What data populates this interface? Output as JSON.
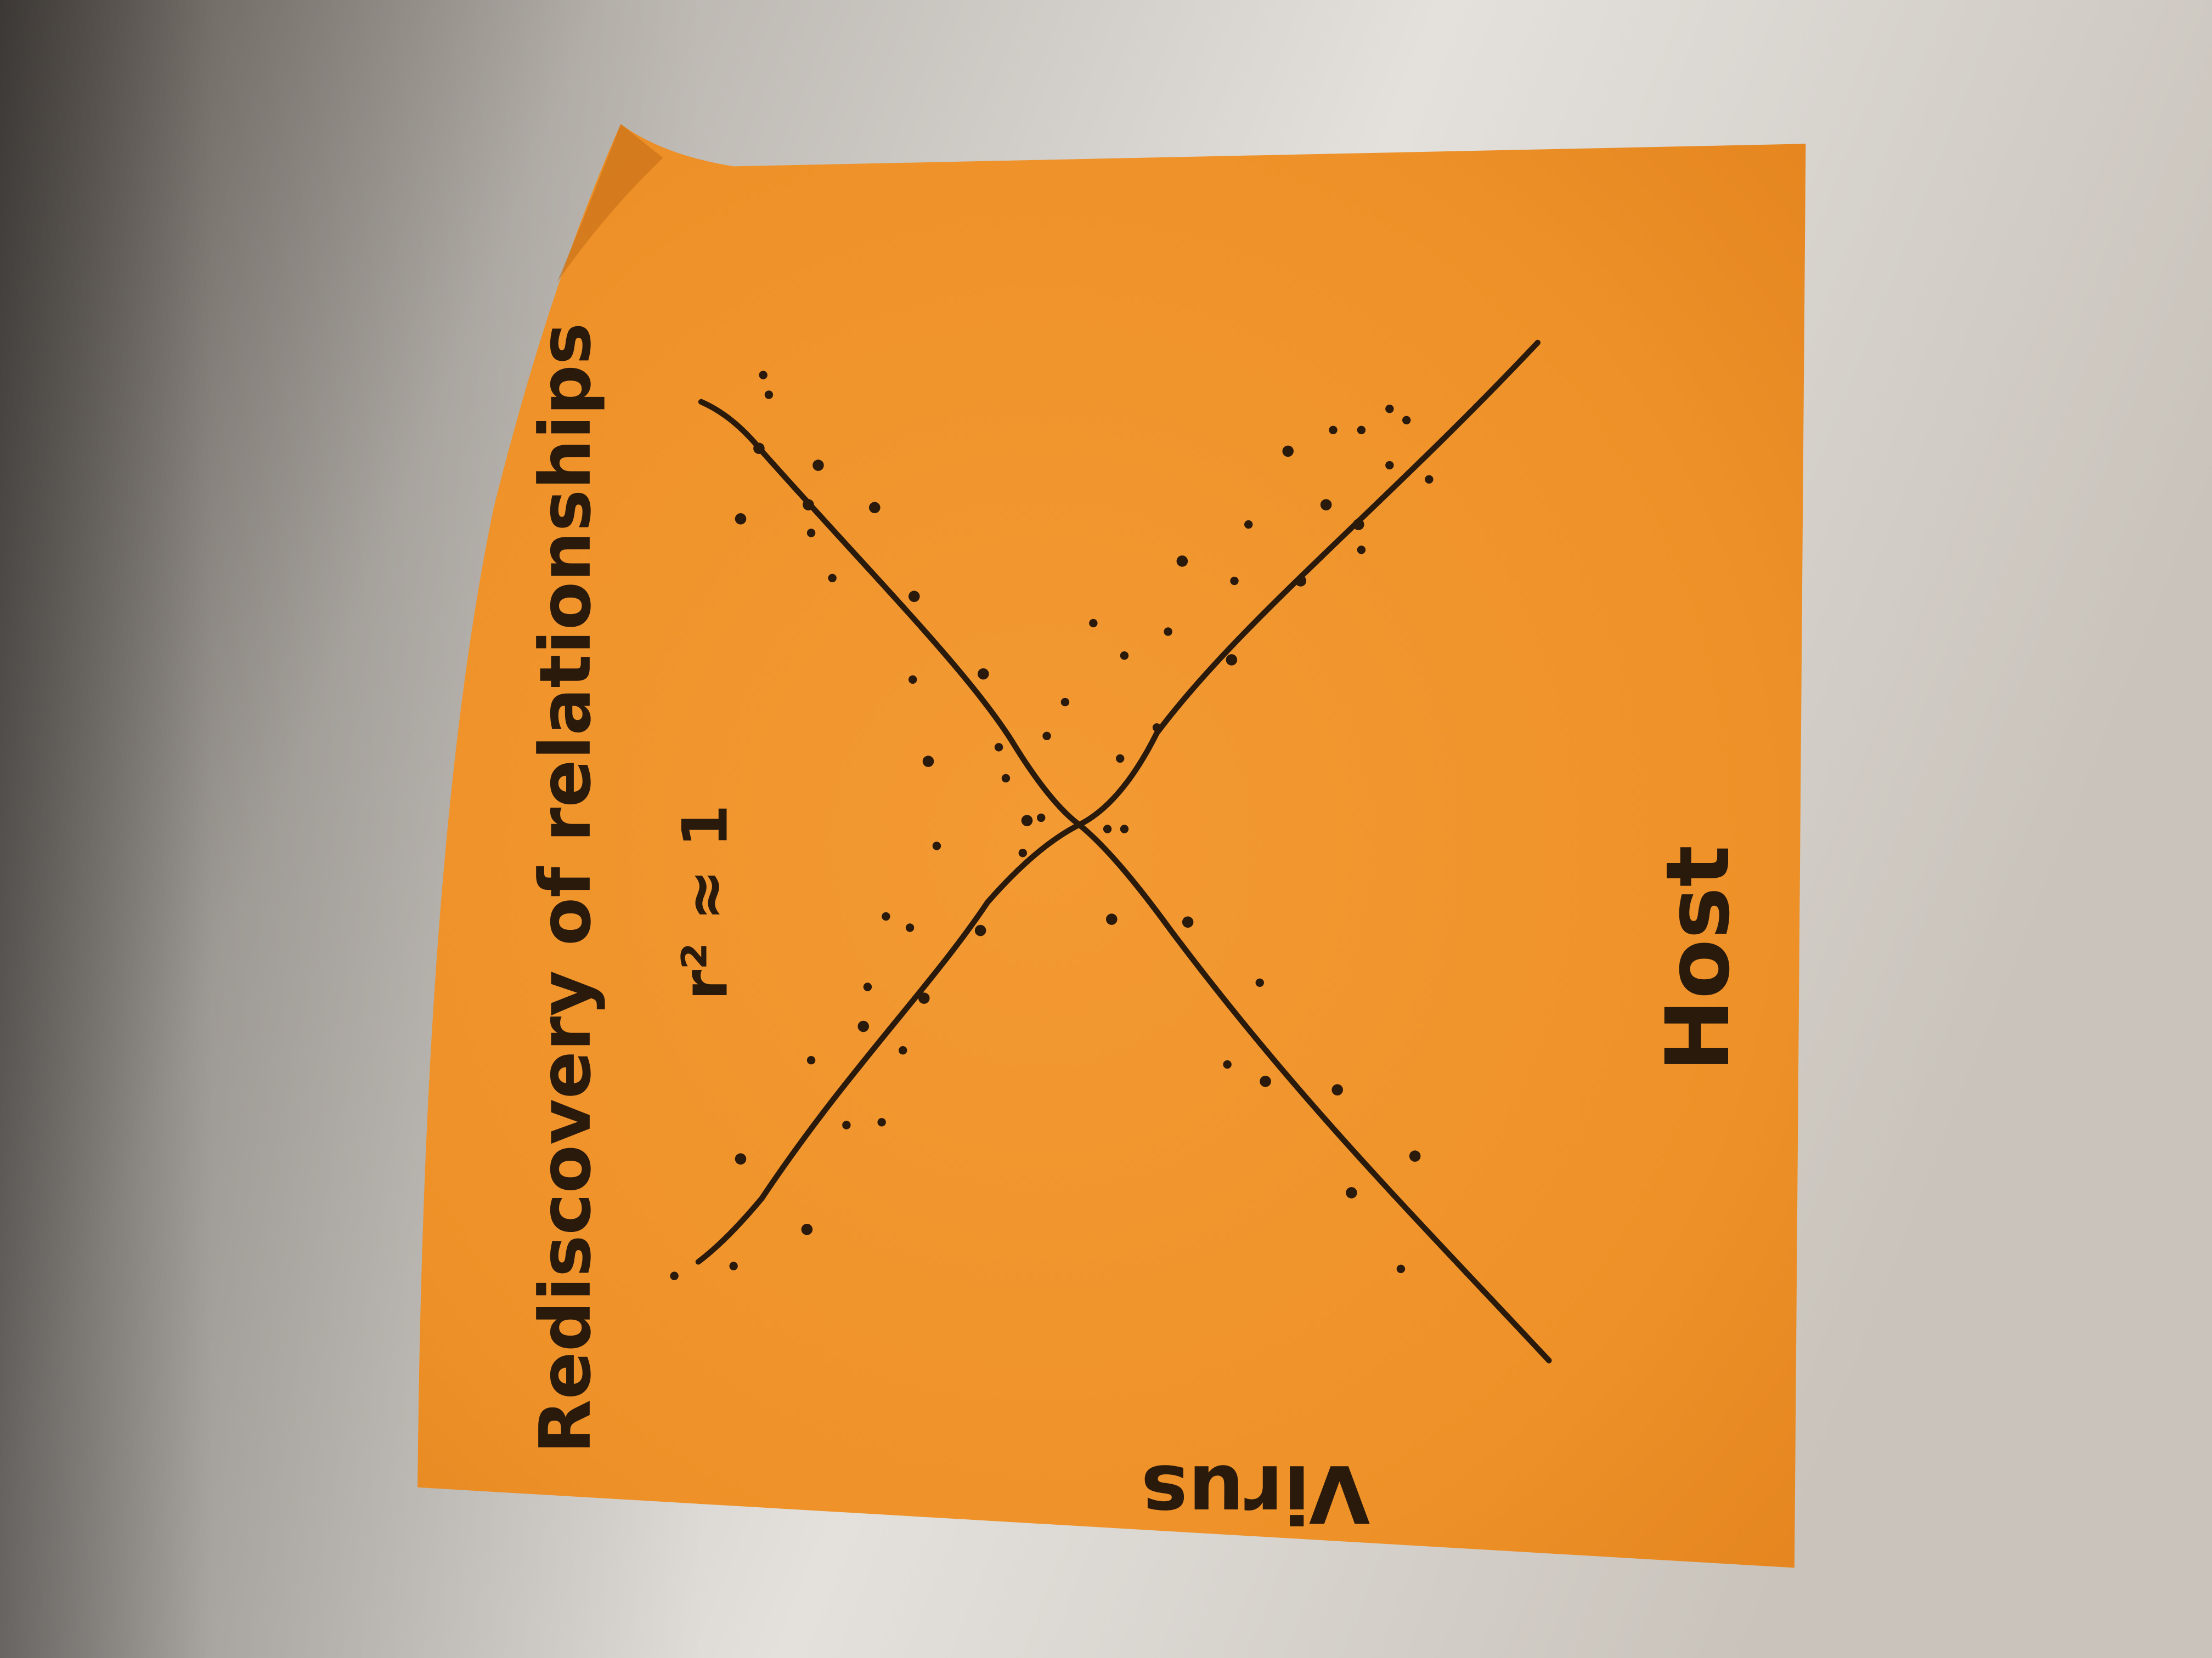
{
  "note": {
    "title": "Rediscovery of relationships",
    "annotation": "r² ≈ 1",
    "right_label": "Host",
    "bottom_label": "Virus"
  }
}
